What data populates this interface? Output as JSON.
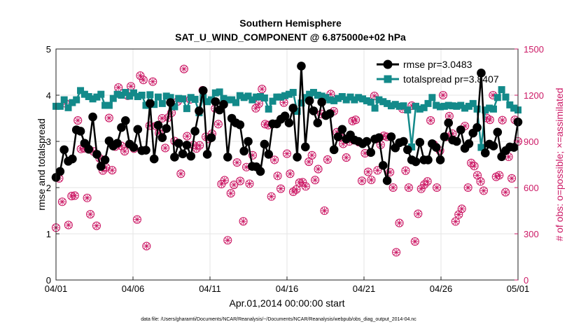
{
  "chart_data": {
    "type": "line",
    "title": "Southern Hemisphere",
    "subtitle": "SAT_U_WIND_COMPONENT @ 6.875000e+02 hPa",
    "xlabel": "Apr.01,2014 00:00:00 start",
    "ylabel": "rmse and totalspread",
    "ylabel_right": "# of obs: o=possible; ×=assimilated",
    "xlim": [
      0,
      30
    ],
    "ylim": [
      0,
      5
    ],
    "ylim_right": [
      0,
      1500
    ],
    "x_tick_values": [
      0,
      5,
      10,
      15,
      20,
      25,
      30
    ],
    "x_tick_labels": [
      "04/01",
      "04/06",
      "04/11",
      "04/16",
      "04/21",
      "04/26",
      "05/01"
    ],
    "y_ticks": [
      "0",
      "1",
      "2",
      "3",
      "4",
      "5"
    ],
    "y_ticks_right": [
      "0",
      "300",
      "600",
      "900",
      "1200",
      "1500"
    ],
    "grid": true,
    "legend_position": "top-right",
    "series": [
      {
        "name": "rmse pr=3.0483",
        "color": "#000000",
        "marker": "circle",
        "axis": "left",
        "values": [
          2.22,
          2.35,
          2.82,
          2.57,
          2.62,
          3.25,
          3.22,
          2.96,
          2.83,
          3.53,
          2.72,
          2.46,
          2.6,
          3.01,
          2.9,
          2.96,
          3.3,
          3.45,
          2.94,
          2.87,
          3.26,
          2.8,
          2.81,
          3.82,
          2.62,
          3.35,
          3.08,
          3.28,
          3.84,
          2.66,
          2.96,
          2.73,
          2.92,
          2.68,
          3.22,
          3.66,
          4.1,
          2.72,
          3.08,
          3.86,
          3.68,
          3.8,
          2.66,
          3.5,
          3.4,
          3.36,
          2.79,
          3.0,
          2.46,
          2.45,
          2.35,
          2.94,
          2.72,
          3.38,
          3.38,
          3.48,
          3.55,
          3.4,
          3.72,
          2.66,
          4.63,
          2.88,
          3.88,
          3.66,
          3.4,
          3.85,
          3.56,
          3.6,
          2.82,
          3.1,
          3.26,
          3.05,
          3.14,
          3.03,
          3.0,
          2.95,
          3.0,
          2.76,
          3.05,
          3.08,
          2.48,
          2.15,
          3.1,
          2.86,
          2.97,
          3.0,
          2.82,
          2.6,
          2.56,
          2.98,
          2.6,
          2.6,
          2.95,
          2.87,
          2.6,
          3.1,
          3.4,
          3.03,
          3.0,
          3.25,
          2.85,
          2.95,
          3.18,
          3.3,
          4.48,
          2.75,
          2.94,
          2.9,
          3.2,
          2.67,
          2.8,
          2.88,
          2.87,
          3.42
        ]
      },
      {
        "name": "totalspread pr=3.8407",
        "color": "#138a8a",
        "marker": "square",
        "axis": "left",
        "values": [
          3.76,
          3.76,
          3.9,
          3.73,
          3.84,
          3.9,
          4.1,
          4.02,
          3.97,
          3.92,
          3.96,
          4.02,
          3.78,
          3.78,
          3.93,
          4.02,
          4.0,
          4.06,
          3.98,
          4.05,
          3.97,
          4.0,
          3.78,
          4.01,
          3.8,
          3.96,
          3.82,
          3.98,
          3.95,
          3.75,
          3.93,
          3.92,
          3.71,
          3.95,
          3.91,
          3.62,
          3.95,
          3.86,
          3.9,
          4.05,
          4.07,
          3.93,
          3.9,
          3.9,
          3.84,
          3.99,
          3.95,
          3.98,
          3.9,
          3.96,
          3.97,
          3.94,
          3.7,
          3.87,
          3.96,
          3.96,
          3.99,
          4.02,
          4.06,
          3.65,
          3.83,
          3.95,
          4.02,
          4.06,
          4.0,
          3.98,
          3.95,
          3.9,
          3.88,
          3.93,
          3.97,
          3.9,
          3.96,
          3.9,
          3.95,
          3.92,
          3.88,
          3.85,
          3.72,
          3.9,
          3.86,
          3.82,
          3.77,
          3.8,
          3.76,
          3.77,
          3.68,
          2.88,
          3.76,
          3.7,
          3.73,
          3.82,
          3.95,
          3.78,
          3.75,
          3.76,
          3.78,
          3.77,
          3.76,
          3.78,
          3.72,
          3.76,
          3.82,
          3.7,
          2.87,
          3.68,
          3.72,
          3.7,
          3.95,
          4.12,
          3.96,
          3.79,
          3.72,
          3.68
        ]
      },
      {
        "name": "obs possible",
        "color": "#cc1a66",
        "marker": "circle-open",
        "axis": "right",
        "values": [
          340,
          660,
          508,
          1148,
          357,
          545,
          548,
          1036,
          851,
          855,
          533,
          427,
          835,
          352,
          790,
          711,
          731,
          1052,
          713,
          866,
          1250,
          870,
          836,
          1196,
          1258,
          853,
          393,
          1327,
          1299,
          220,
          1002,
          1288,
          1000,
          954,
          1050,
          857,
          1055,
          1086,
          902,
          1160,
          690,
          1370,
          934,
          1173,
          876,
          854,
          874,
          1232,
          930,
          916,
          950,
          1114,
          1012,
          623,
          648,
          258,
          563,
          618,
          763,
          643,
          381,
          733,
          625,
          810,
          1115,
          1145,
          1240,
          1012,
          1006,
          542,
          780,
          676,
          593,
          1152,
          820,
          690,
          573,
          588,
          632,
          635,
          608,
          768,
          810,
          649,
          720,
          1078,
          450,
          782,
          1207,
          1096,
          960,
          926,
          884,
          795,
          900,
          1032,
          1040,
          895,
          644,
          823,
          702,
          650,
          1195,
          712,
          878,
          936,
          930,
          700,
          600,
          180,
          370,
          1112,
          710,
          600,
          1132,
          250,
          430,
          592,
          620,
          640,
          1036,
          880,
          600,
          840,
          1200,
          930,
          1064,
          950,
          380,
          425,
          462,
          1000,
          600,
          760,
          740,
          680,
          640,
          580,
          1052,
          1040,
          1200,
          670,
          680,
          1038,
          570,
          800,
          660,
          1040,
          900
        ]
      }
    ]
  },
  "footer": "data file: /Users/gharamti/Documents/NCAR/Reanalysis/~/Documents/NCAR/Reanalysis/webpub/obs_diag_output_2014-04.nc"
}
